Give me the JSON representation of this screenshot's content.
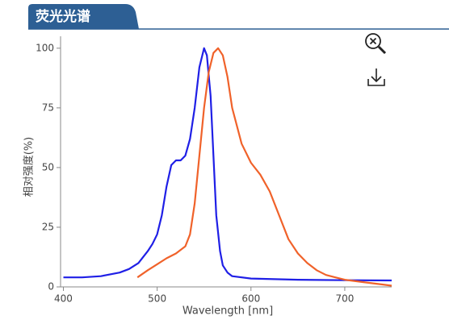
{
  "header": {
    "title": "荧光光谱"
  },
  "chart_data": {
    "type": "line",
    "x_label": "Wavelength [nm]",
    "y_label": "相对强度(%)",
    "xlim": [
      397,
      750
    ],
    "ylim": [
      0,
      105
    ],
    "xticks": [
      400,
      500,
      600,
      700
    ],
    "yticks": [
      0,
      25,
      50,
      75,
      100
    ],
    "series": [
      {
        "color": "#1f1fe6",
        "x": [
          400,
          420,
          440,
          460,
          470,
          480,
          490,
          495,
          500,
          505,
          510,
          515,
          520,
          525,
          530,
          535,
          540,
          545,
          550,
          553,
          557,
          560,
          563,
          567,
          570,
          575,
          580,
          600,
          650,
          700,
          750
        ],
        "values": [
          4,
          4,
          4.5,
          6,
          7.5,
          10,
          15,
          18,
          22,
          30,
          42,
          51,
          53,
          53,
          55,
          62,
          75,
          92,
          100,
          97,
          80,
          55,
          30,
          15,
          9,
          6,
          4.5,
          3.5,
          3,
          2.8,
          2.7
        ]
      },
      {
        "color": "#f0622a",
        "x": [
          479,
          490,
          500,
          510,
          520,
          530,
          535,
          540,
          545,
          550,
          555,
          560,
          565,
          570,
          575,
          580,
          590,
          600,
          610,
          620,
          630,
          640,
          650,
          660,
          670,
          680,
          690,
          700,
          720,
          740,
          750
        ],
        "values": [
          4,
          7,
          9.5,
          12,
          14,
          17,
          22,
          35,
          55,
          75,
          90,
          98,
          100,
          97,
          88,
          75,
          60,
          52,
          47,
          40,
          30,
          20,
          14,
          10,
          7,
          5,
          4,
          3,
          2,
          1,
          0.5
        ]
      }
    ]
  }
}
